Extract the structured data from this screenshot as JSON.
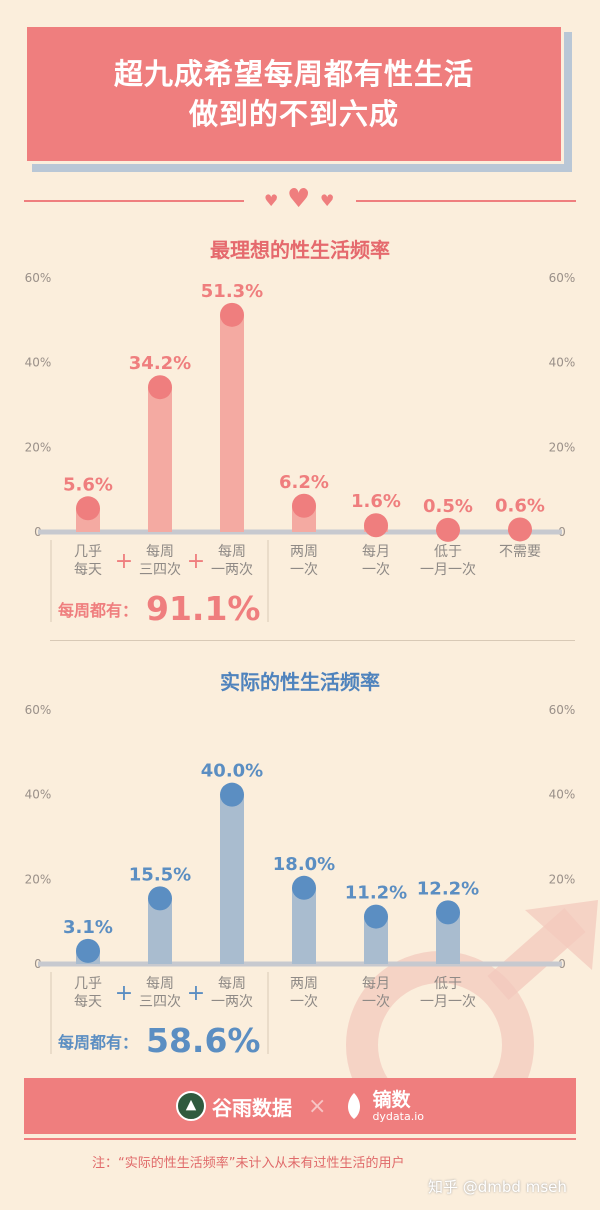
{
  "header": {
    "title_line1": "超九成希望每周都有性生活",
    "title_line2": "做到的不到六成"
  },
  "chart_data": [
    {
      "type": "bar",
      "title": "最理想的性生活频率",
      "categories": [
        "几乎\n每天",
        "每周\n三四次",
        "每周\n一两次",
        "两周\n一次",
        "每月\n一次",
        "低于\n一月一次",
        "不需要"
      ],
      "values": [
        5.6,
        34.2,
        51.3,
        6.2,
        1.6,
        0.5,
        0.6
      ],
      "value_labels": [
        "5.6%",
        "34.2%",
        "51.3%",
        "6.2%",
        "1.6%",
        "0.5%",
        "0.6%"
      ],
      "ylim": [
        0,
        60
      ],
      "yticks": [
        "0",
        "20%",
        "40%",
        "60%"
      ],
      "grid": false,
      "color": "#ef7e7e",
      "bar_color": "#f4aaa2",
      "plus_sign": "+",
      "summary_label": "每周都有：",
      "summary_value": "91.1%"
    },
    {
      "type": "bar",
      "title": "实际的性生活频率",
      "categories": [
        "几乎\n每天",
        "每周\n三四次",
        "每周\n一两次",
        "两周\n一次",
        "每月\n一次",
        "低于\n一月一次"
      ],
      "values": [
        3.1,
        15.5,
        40.0,
        18.0,
        11.2,
        12.2
      ],
      "value_labels": [
        "3.1%",
        "15.5%",
        "40.0%",
        "18.0%",
        "11.2%",
        "12.2%"
      ],
      "ylim": [
        0,
        60
      ],
      "yticks": [
        "0",
        "20%",
        "40%",
        "60%"
      ],
      "grid": false,
      "color": "#5b8ec2",
      "bar_color": "#a9bccf",
      "plus_sign": "+",
      "summary_label": "每周都有：",
      "summary_value": "58.6%"
    }
  ],
  "footer": {
    "brand_left": "谷雨数据",
    "times": "×",
    "brand_right": "镝数",
    "brand_right_url": "dydata.io",
    "note": "注：“实际的性生活频率”未计入从未有过性生活的用户",
    "watermark": "知乎 @dmbd mseh"
  },
  "icons": [
    "heart-icon",
    "male-symbol-icon",
    "guyu-logo-icon",
    "dydata-logo-icon"
  ]
}
